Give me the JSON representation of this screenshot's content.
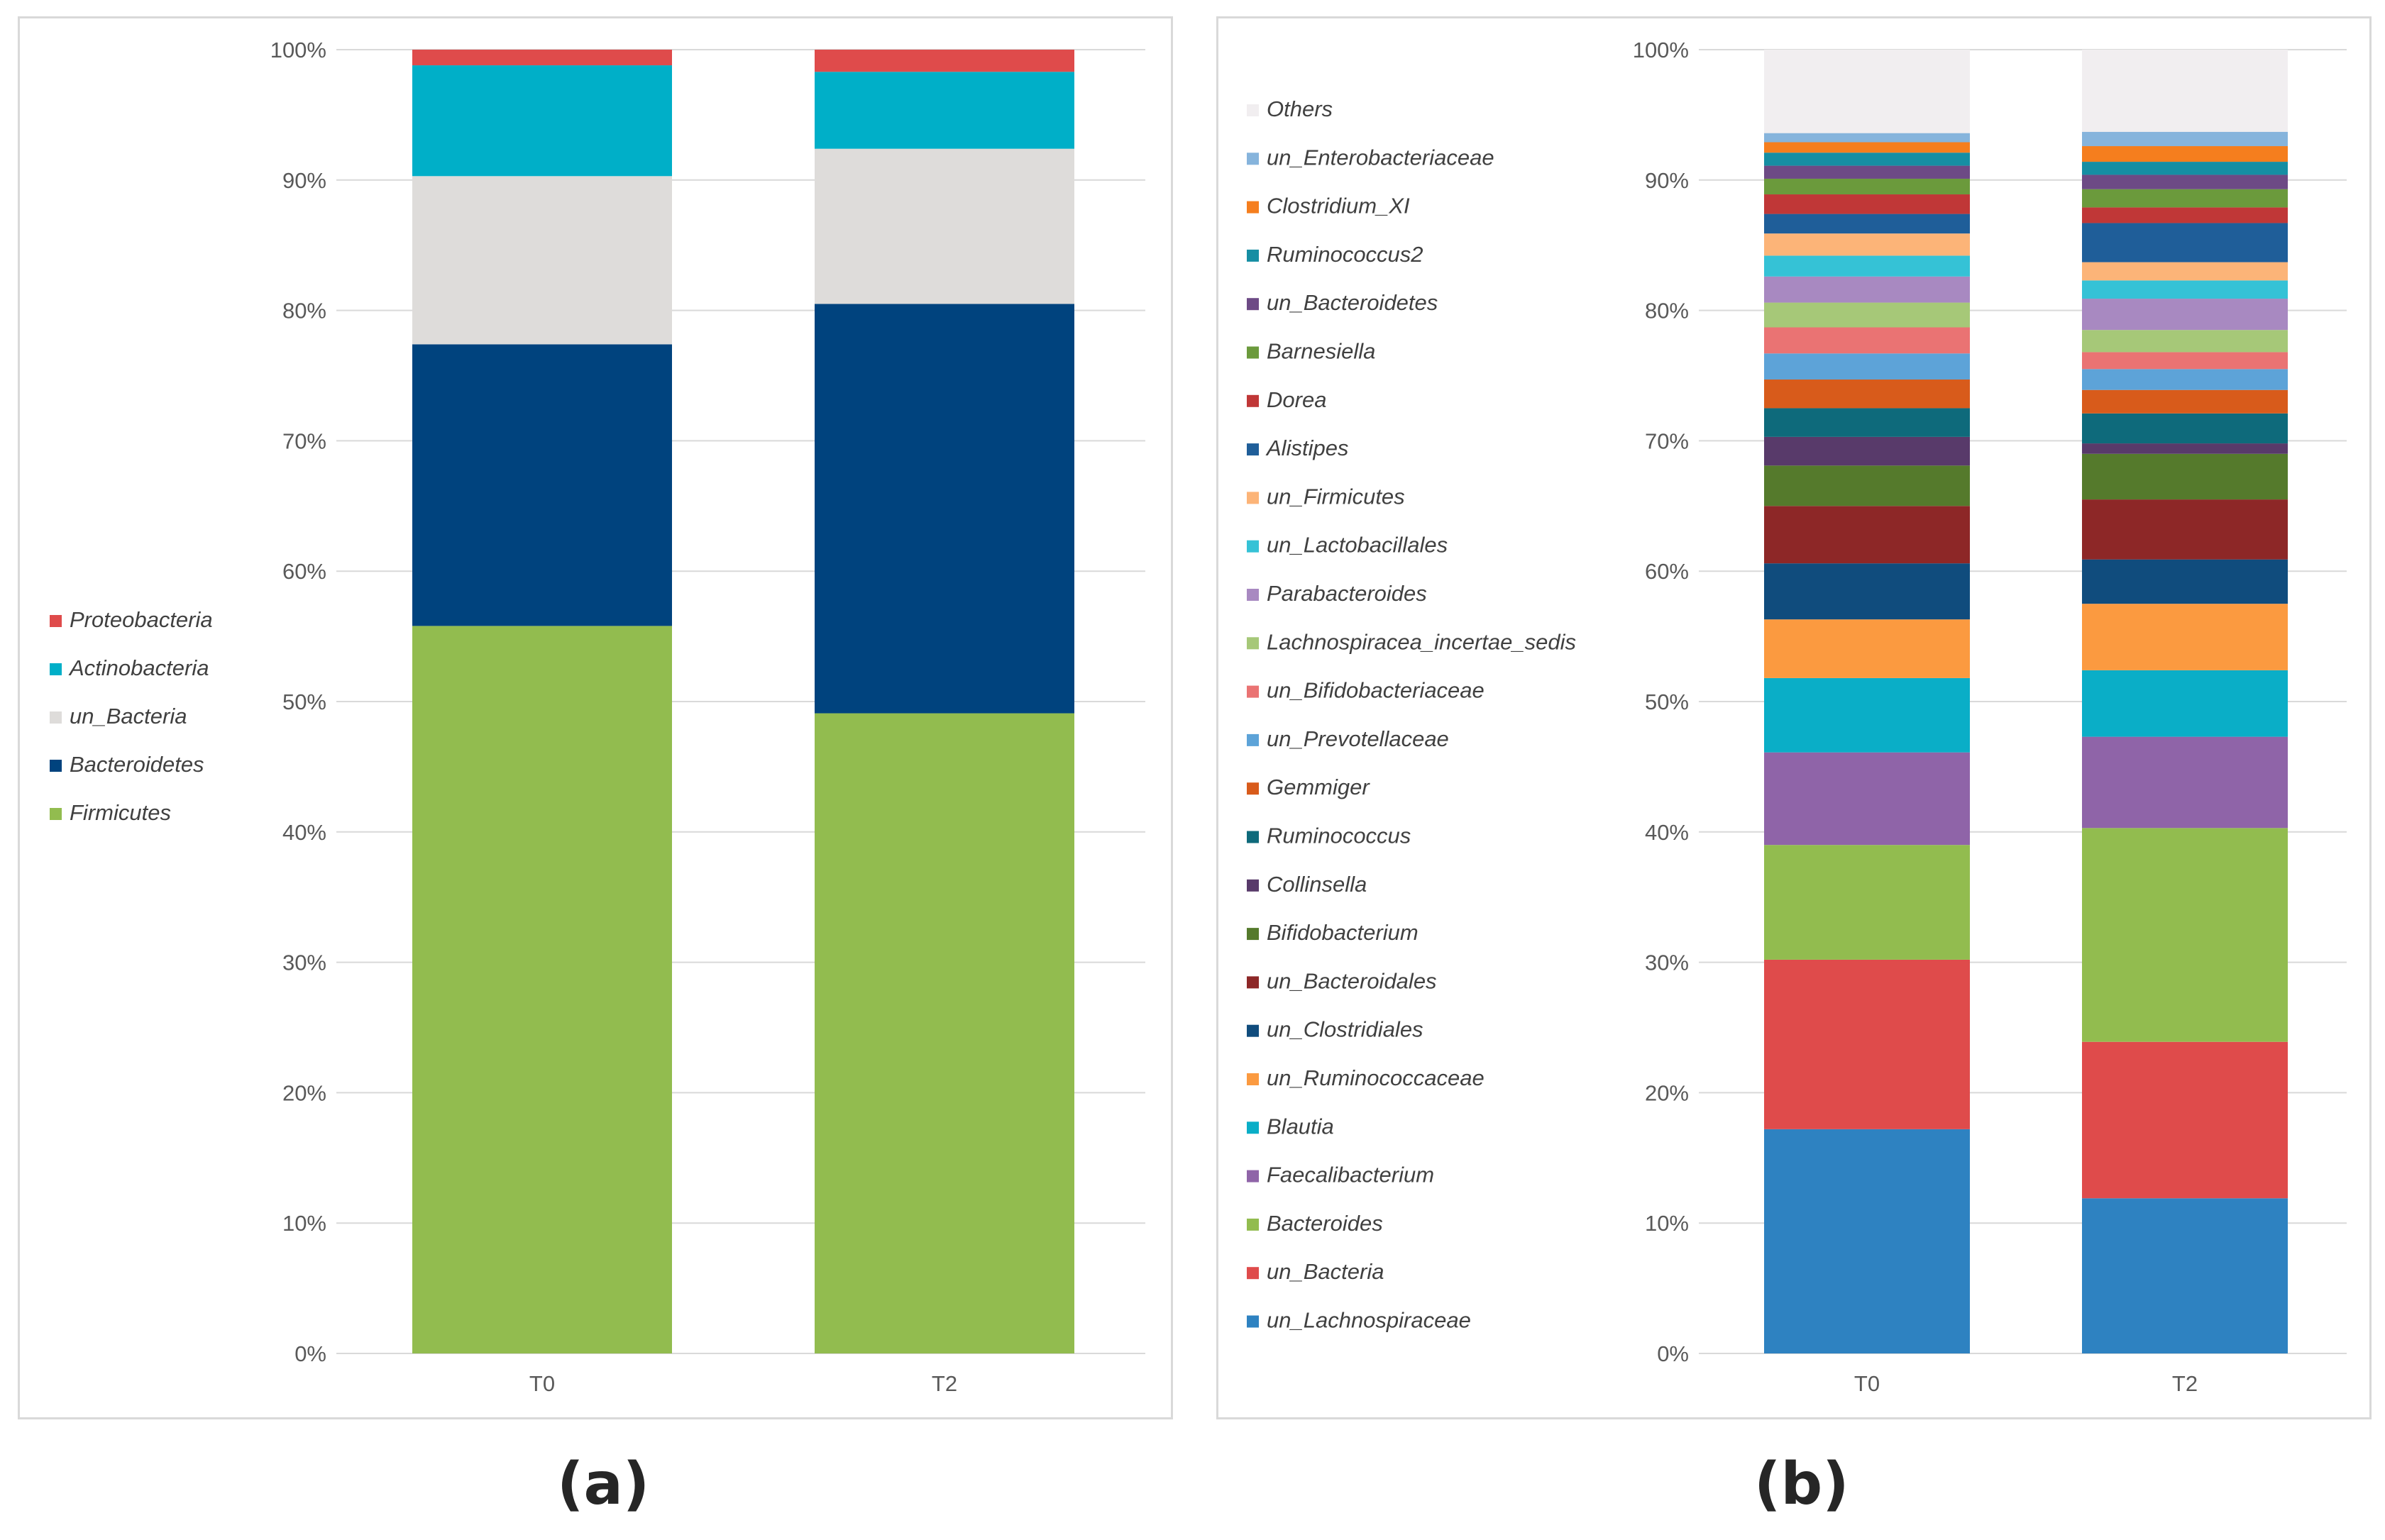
{
  "captions": {
    "a": "(a)",
    "b": "(b)"
  },
  "chart_data": [
    {
      "type": "bar",
      "stacked": true,
      "percent": true,
      "categories": [
        "T0",
        "T2"
      ],
      "ylim": [
        0,
        100
      ],
      "yticks": [
        "0%",
        "10%",
        "20%",
        "30%",
        "40%",
        "50%",
        "60%",
        "70%",
        "80%",
        "90%",
        "100%"
      ],
      "grid": true,
      "legend": "left",
      "series": [
        {
          "name": "Firmicutes",
          "color": "#92bc4f",
          "values": [
            55.8,
            49.1
          ]
        },
        {
          "name": "Bacteroidetes",
          "color": "#00437e",
          "values": [
            21.6,
            31.4
          ]
        },
        {
          "name": "un_Bacteria",
          "color": "#dedcda",
          "values": [
            12.9,
            11.9
          ]
        },
        {
          "name": "Actinobacteria",
          "color": "#00afc8",
          "values": [
            8.5,
            5.9
          ]
        },
        {
          "name": "Proteobacteria",
          "color": "#df4b4b",
          "values": [
            1.2,
            1.7
          ]
        }
      ]
    },
    {
      "type": "bar",
      "stacked": true,
      "percent": true,
      "categories": [
        "T0",
        "T2"
      ],
      "ylim": [
        0,
        100
      ],
      "yticks": [
        "0%",
        "10%",
        "20%",
        "30%",
        "40%",
        "50%",
        "60%",
        "70%",
        "80%",
        "90%",
        "100%"
      ],
      "grid": true,
      "legend": "left",
      "series": [
        {
          "name": "un_Lachnospiraceae",
          "color": "#2e82c1",
          "values": [
            17.2,
            11.9
          ]
        },
        {
          "name": "un_Bacteria",
          "color": "#df4b4b",
          "values": [
            13.0,
            12.0
          ]
        },
        {
          "name": "Bacteroides",
          "color": "#92bc4f",
          "values": [
            8.8,
            16.4
          ]
        },
        {
          "name": "Faecalibacterium",
          "color": "#8f64a8",
          "values": [
            7.1,
            7.0
          ]
        },
        {
          "name": "Blautia",
          "color": "#0aaec7",
          "values": [
            5.7,
            5.1
          ]
        },
        {
          "name": "un_Ruminococcaceae",
          "color": "#fb9a40",
          "values": [
            4.5,
            5.1
          ]
        },
        {
          "name": "un_Clostridiales",
          "color": "#104c7d",
          "values": [
            4.3,
            3.4
          ]
        },
        {
          "name": "un_Bacteroidales",
          "color": "#8d2727",
          "values": [
            4.4,
            4.6
          ]
        },
        {
          "name": "Bifidobacterium",
          "color": "#557a2c",
          "values": [
            3.1,
            3.5
          ]
        },
        {
          "name": "Collinsella",
          "color": "#583a6a",
          "values": [
            2.2,
            0.8
          ]
        },
        {
          "name": "Ruminococcus",
          "color": "#0e6a7b",
          "values": [
            2.2,
            2.3
          ]
        },
        {
          "name": "Gemmiger",
          "color": "#d85b1b",
          "values": [
            2.2,
            1.8
          ]
        },
        {
          "name": "un_Prevotellaceae",
          "color": "#5da3d8",
          "values": [
            2.0,
            1.6
          ]
        },
        {
          "name": "un_Bifidobacteriaceae",
          "color": "#ea7373",
          "values": [
            2.0,
            1.3
          ]
        },
        {
          "name": "Lachnospiracea_incertae_sedis",
          "color": "#a6c878",
          "values": [
            1.9,
            1.7
          ]
        },
        {
          "name": "Parabacteroides",
          "color": "#a889c1",
          "values": [
            2.0,
            2.4
          ]
        },
        {
          "name": "un_Lactobacillales",
          "color": "#35c2d6",
          "values": [
            1.6,
            1.4
          ]
        },
        {
          "name": "un_Firmicutes",
          "color": "#fcb478",
          "values": [
            1.7,
            1.4
          ]
        },
        {
          "name": "Alistipes",
          "color": "#1f5e99",
          "values": [
            1.5,
            3.0
          ]
        },
        {
          "name": "Dorea",
          "color": "#c03737",
          "values": [
            1.5,
            1.2
          ]
        },
        {
          "name": "Barnesiella",
          "color": "#6b9a3c",
          "values": [
            1.2,
            1.4
          ]
        },
        {
          "name": "un_Bacteroidetes",
          "color": "#6d4a85",
          "values": [
            1.0,
            1.1
          ]
        },
        {
          "name": "Ruminococcus2",
          "color": "#168ea3",
          "values": [
            1.0,
            1.0
          ]
        },
        {
          "name": "Clostridium_XI",
          "color": "#f57e1e",
          "values": [
            0.8,
            1.2
          ]
        },
        {
          "name": "un_Enterobacteriaceae",
          "color": "#86b4dc",
          "values": [
            0.7,
            1.1
          ]
        },
        {
          "name": "Others",
          "color": "#f1eef0",
          "values": [
            6.4,
            6.3
          ]
        }
      ]
    }
  ]
}
